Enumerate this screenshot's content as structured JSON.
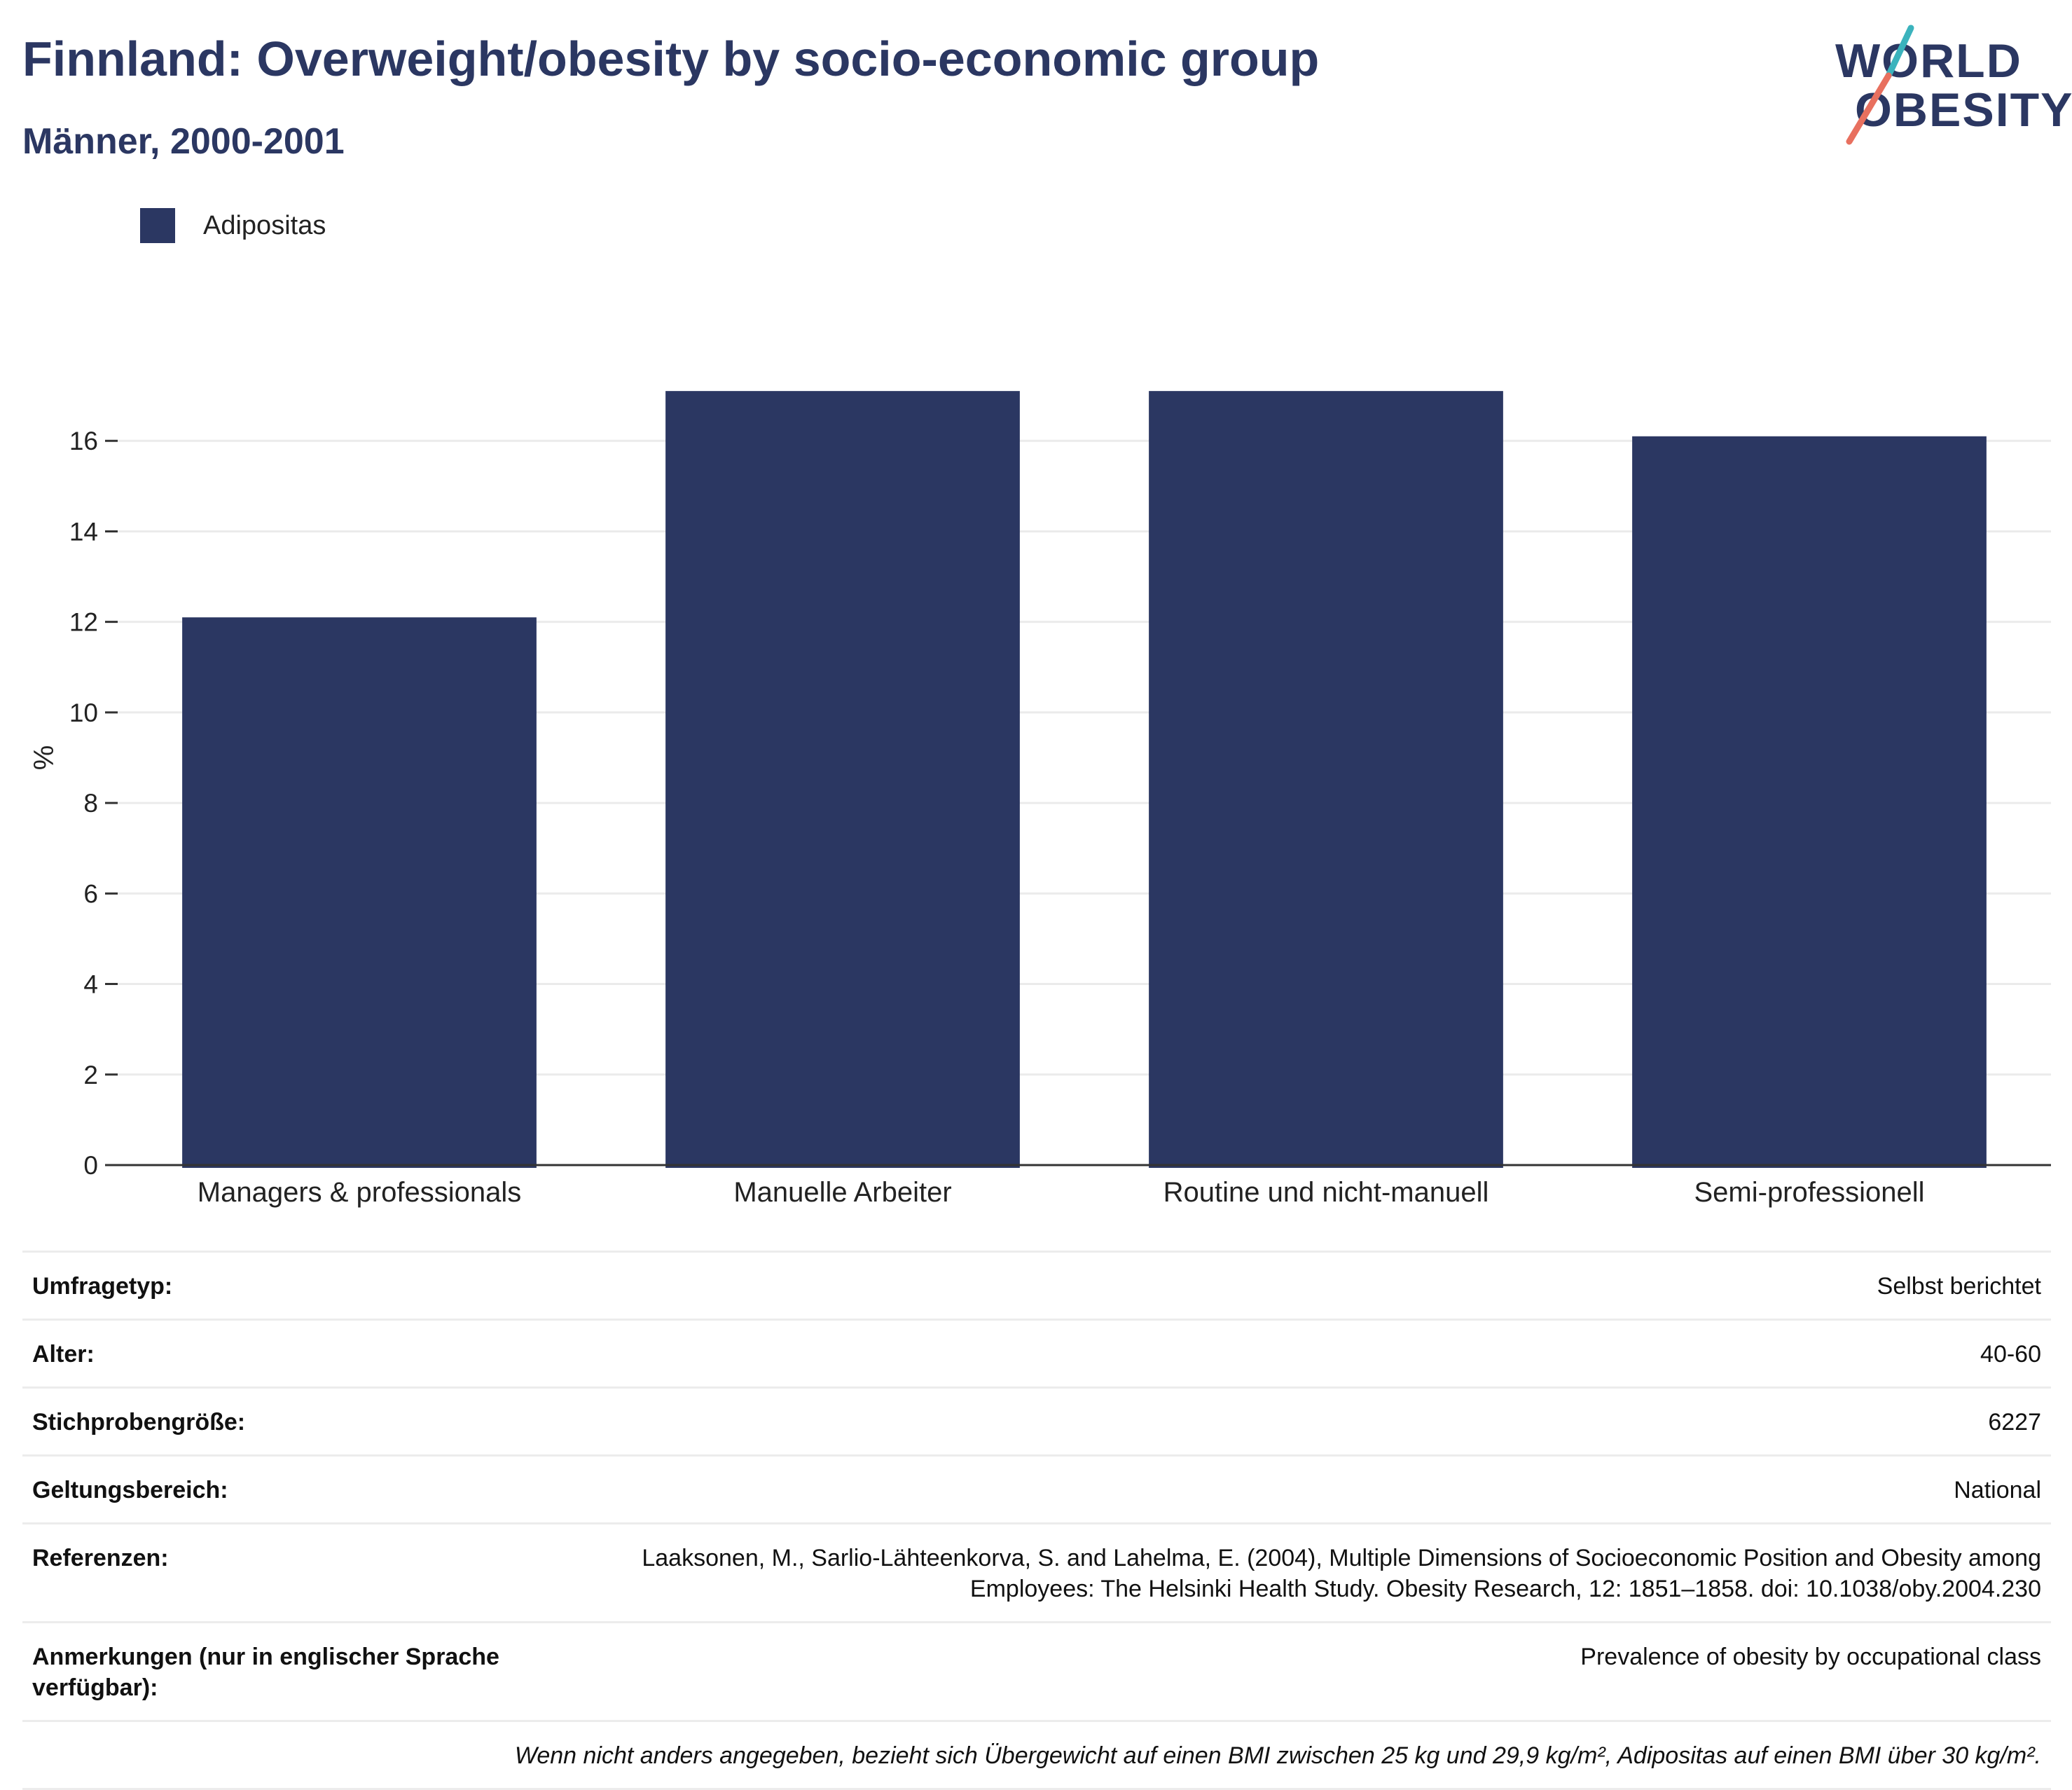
{
  "header": {
    "title": "Finnland: Overweight/obesity by socio-economic group",
    "subtitle": "Männer, 2000-2001"
  },
  "logo": {
    "line1": "WORLD",
    "line2": "OBESITY",
    "colors": {
      "text": "#2b3762",
      "accent_teal": "#3bb3bd",
      "accent_coral": "#e8705f"
    }
  },
  "legend": {
    "items": [
      {
        "label": "Adipositas",
        "color": "#2b3762"
      }
    ]
  },
  "chart_data": {
    "type": "bar",
    "categories": [
      "Managers & professionals",
      "Manuelle Arbeiter",
      "Routine und nicht-manuell",
      "Semi-professionell"
    ],
    "series": [
      {
        "name": "Adipositas",
        "values": [
          12.1,
          17.1,
          17.1,
          16.1
        ],
        "color": "#2b3762"
      }
    ],
    "ylabel": "%",
    "ylim": [
      0,
      18
    ],
    "yticks": [
      0,
      2,
      4,
      6,
      8,
      10,
      12,
      14,
      16
    ],
    "grid": true,
    "legend_position": "top-left"
  },
  "info": {
    "rows": [
      {
        "key": "Umfragetyp:",
        "value": "Selbst berichtet"
      },
      {
        "key": "Alter:",
        "value": "40-60"
      },
      {
        "key": "Stichprobengröße:",
        "value": "6227"
      },
      {
        "key": "Geltungsbereich:",
        "value": "National"
      },
      {
        "key": "Referenzen:",
        "value": "Laaksonen, M., Sarlio-Lähteenkorva, S. and Lahelma, E. (2004), Multiple Dimensions of Socioeconomic Position and Obesity among Employees: The Helsinki Health Study. Obesity Research, 12: 1851–1858. doi: 10.1038/oby.2004.230"
      },
      {
        "key": "Anmerkungen (nur in englischer Sprache verfügbar):",
        "value": "Prevalence of obesity by occupational class"
      }
    ],
    "footnote": "Wenn nicht anders angegeben, bezieht sich Übergewicht auf einen BMI zwischen 25 kg und 29,9 kg/m², Adipositas auf einen BMI über 30 kg/m²."
  }
}
